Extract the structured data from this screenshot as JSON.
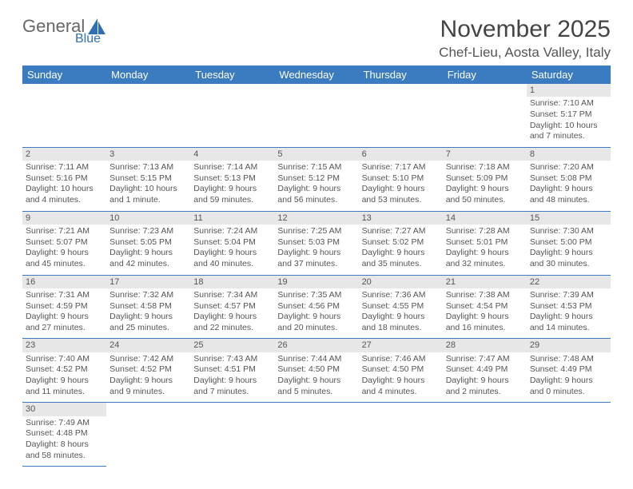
{
  "brand": {
    "word1": "General",
    "word2": "Blue",
    "word1_color": "#676767",
    "word2_color": "#2f6fb3"
  },
  "title": "November 2025",
  "location": "Chef-Lieu, Aosta Valley, Italy",
  "colors": {
    "header_bg": "#3b7bbf",
    "header_text": "#ffffff",
    "daynum_bg": "#e7e7e7",
    "cell_border": "#3b7bbf",
    "text": "#555555"
  },
  "typography": {
    "title_fontsize": 30,
    "location_fontsize": 17,
    "weekday_fontsize": 13,
    "cell_fontsize": 10.5
  },
  "weekdays": [
    "Sunday",
    "Monday",
    "Tuesday",
    "Wednesday",
    "Thursday",
    "Friday",
    "Saturday"
  ],
  "weeks": [
    [
      null,
      null,
      null,
      null,
      null,
      null,
      {
        "n": "1",
        "sr": "Sunrise: 7:10 AM",
        "ss": "Sunset: 5:17 PM",
        "dl": "Daylight: 10 hours and 7 minutes."
      }
    ],
    [
      {
        "n": "2",
        "sr": "Sunrise: 7:11 AM",
        "ss": "Sunset: 5:16 PM",
        "dl": "Daylight: 10 hours and 4 minutes."
      },
      {
        "n": "3",
        "sr": "Sunrise: 7:13 AM",
        "ss": "Sunset: 5:15 PM",
        "dl": "Daylight: 10 hours and 1 minute."
      },
      {
        "n": "4",
        "sr": "Sunrise: 7:14 AM",
        "ss": "Sunset: 5:13 PM",
        "dl": "Daylight: 9 hours and 59 minutes."
      },
      {
        "n": "5",
        "sr": "Sunrise: 7:15 AM",
        "ss": "Sunset: 5:12 PM",
        "dl": "Daylight: 9 hours and 56 minutes."
      },
      {
        "n": "6",
        "sr": "Sunrise: 7:17 AM",
        "ss": "Sunset: 5:10 PM",
        "dl": "Daylight: 9 hours and 53 minutes."
      },
      {
        "n": "7",
        "sr": "Sunrise: 7:18 AM",
        "ss": "Sunset: 5:09 PM",
        "dl": "Daylight: 9 hours and 50 minutes."
      },
      {
        "n": "8",
        "sr": "Sunrise: 7:20 AM",
        "ss": "Sunset: 5:08 PM",
        "dl": "Daylight: 9 hours and 48 minutes."
      }
    ],
    [
      {
        "n": "9",
        "sr": "Sunrise: 7:21 AM",
        "ss": "Sunset: 5:07 PM",
        "dl": "Daylight: 9 hours and 45 minutes."
      },
      {
        "n": "10",
        "sr": "Sunrise: 7:23 AM",
        "ss": "Sunset: 5:05 PM",
        "dl": "Daylight: 9 hours and 42 minutes."
      },
      {
        "n": "11",
        "sr": "Sunrise: 7:24 AM",
        "ss": "Sunset: 5:04 PM",
        "dl": "Daylight: 9 hours and 40 minutes."
      },
      {
        "n": "12",
        "sr": "Sunrise: 7:25 AM",
        "ss": "Sunset: 5:03 PM",
        "dl": "Daylight: 9 hours and 37 minutes."
      },
      {
        "n": "13",
        "sr": "Sunrise: 7:27 AM",
        "ss": "Sunset: 5:02 PM",
        "dl": "Daylight: 9 hours and 35 minutes."
      },
      {
        "n": "14",
        "sr": "Sunrise: 7:28 AM",
        "ss": "Sunset: 5:01 PM",
        "dl": "Daylight: 9 hours and 32 minutes."
      },
      {
        "n": "15",
        "sr": "Sunrise: 7:30 AM",
        "ss": "Sunset: 5:00 PM",
        "dl": "Daylight: 9 hours and 30 minutes."
      }
    ],
    [
      {
        "n": "16",
        "sr": "Sunrise: 7:31 AM",
        "ss": "Sunset: 4:59 PM",
        "dl": "Daylight: 9 hours and 27 minutes."
      },
      {
        "n": "17",
        "sr": "Sunrise: 7:32 AM",
        "ss": "Sunset: 4:58 PM",
        "dl": "Daylight: 9 hours and 25 minutes."
      },
      {
        "n": "18",
        "sr": "Sunrise: 7:34 AM",
        "ss": "Sunset: 4:57 PM",
        "dl": "Daylight: 9 hours and 22 minutes."
      },
      {
        "n": "19",
        "sr": "Sunrise: 7:35 AM",
        "ss": "Sunset: 4:56 PM",
        "dl": "Daylight: 9 hours and 20 minutes."
      },
      {
        "n": "20",
        "sr": "Sunrise: 7:36 AM",
        "ss": "Sunset: 4:55 PM",
        "dl": "Daylight: 9 hours and 18 minutes."
      },
      {
        "n": "21",
        "sr": "Sunrise: 7:38 AM",
        "ss": "Sunset: 4:54 PM",
        "dl": "Daylight: 9 hours and 16 minutes."
      },
      {
        "n": "22",
        "sr": "Sunrise: 7:39 AM",
        "ss": "Sunset: 4:53 PM",
        "dl": "Daylight: 9 hours and 14 minutes."
      }
    ],
    [
      {
        "n": "23",
        "sr": "Sunrise: 7:40 AM",
        "ss": "Sunset: 4:52 PM",
        "dl": "Daylight: 9 hours and 11 minutes."
      },
      {
        "n": "24",
        "sr": "Sunrise: 7:42 AM",
        "ss": "Sunset: 4:52 PM",
        "dl": "Daylight: 9 hours and 9 minutes."
      },
      {
        "n": "25",
        "sr": "Sunrise: 7:43 AM",
        "ss": "Sunset: 4:51 PM",
        "dl": "Daylight: 9 hours and 7 minutes."
      },
      {
        "n": "26",
        "sr": "Sunrise: 7:44 AM",
        "ss": "Sunset: 4:50 PM",
        "dl": "Daylight: 9 hours and 5 minutes."
      },
      {
        "n": "27",
        "sr": "Sunrise: 7:46 AM",
        "ss": "Sunset: 4:50 PM",
        "dl": "Daylight: 9 hours and 4 minutes."
      },
      {
        "n": "28",
        "sr": "Sunrise: 7:47 AM",
        "ss": "Sunset: 4:49 PM",
        "dl": "Daylight: 9 hours and 2 minutes."
      },
      {
        "n": "29",
        "sr": "Sunrise: 7:48 AM",
        "ss": "Sunset: 4:49 PM",
        "dl": "Daylight: 9 hours and 0 minutes."
      }
    ],
    [
      {
        "n": "30",
        "sr": "Sunrise: 7:49 AM",
        "ss": "Sunset: 4:48 PM",
        "dl": "Daylight: 8 hours and 58 minutes."
      },
      null,
      null,
      null,
      null,
      null,
      null
    ]
  ]
}
